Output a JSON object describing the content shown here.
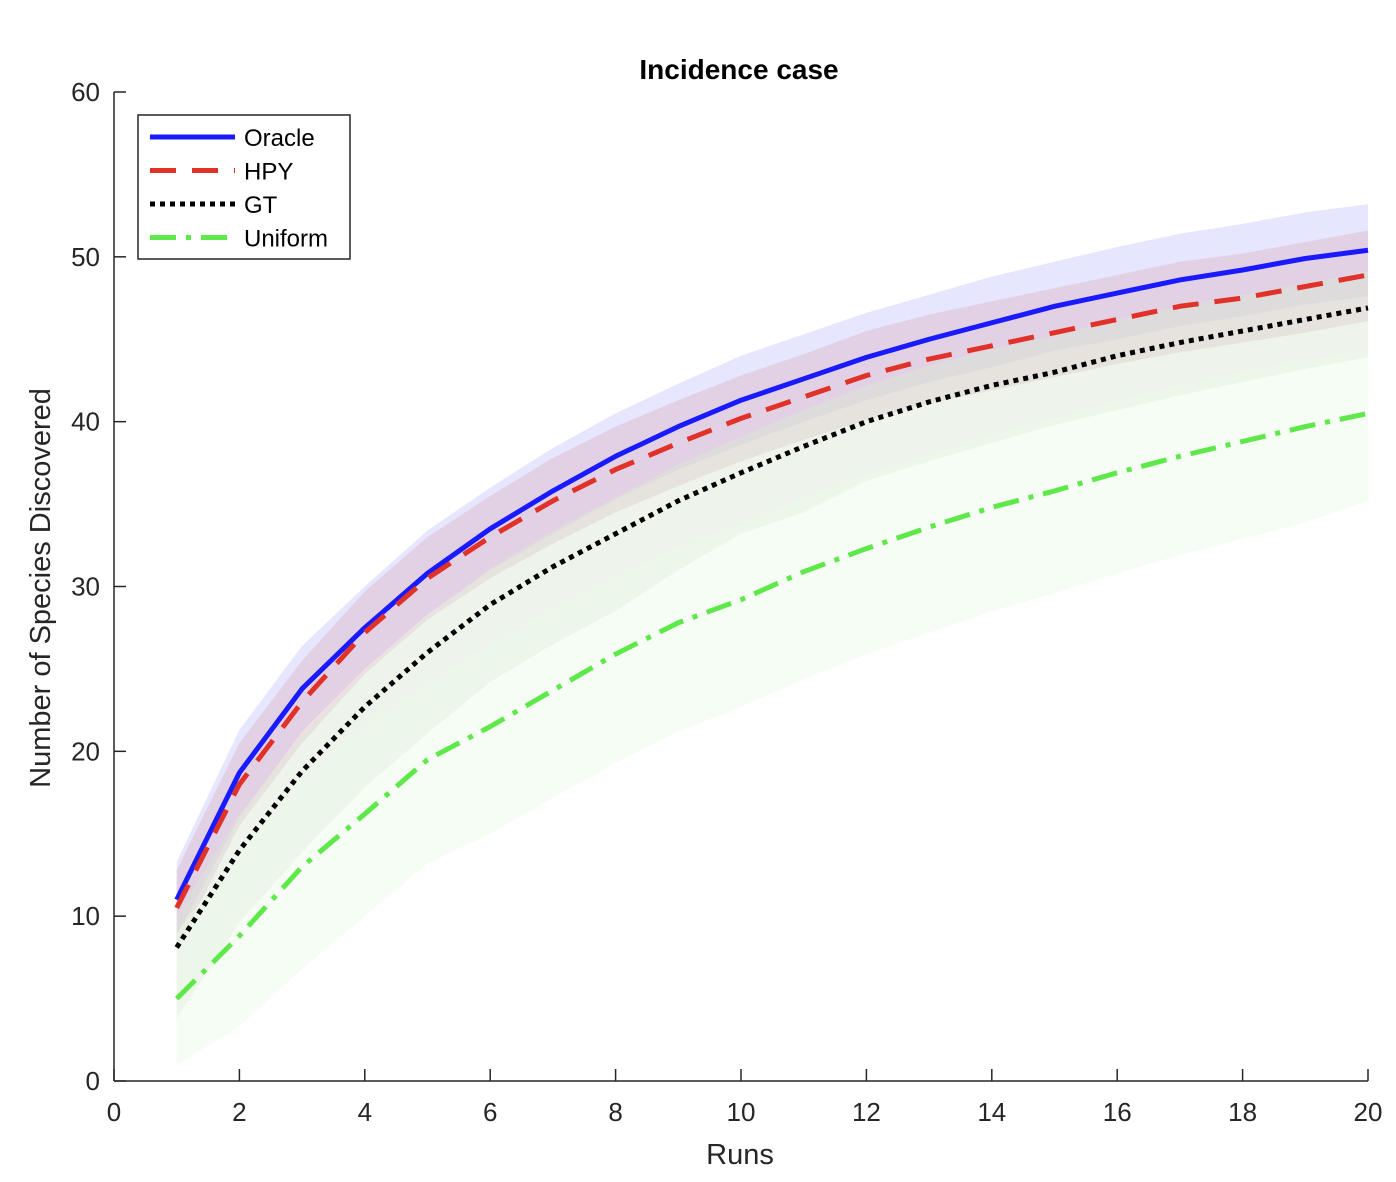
{
  "chart_data": {
    "type": "line",
    "title": "Incidence case",
    "xlabel": "Runs",
    "ylabel": "Number of Species Discovered",
    "xlim": [
      0,
      20
    ],
    "ylim": [
      0,
      60
    ],
    "xticks": [
      "0",
      "2",
      "4",
      "6",
      "8",
      "10",
      "12",
      "14",
      "16",
      "18",
      "20"
    ],
    "yticks": [
      "0",
      "10",
      "20",
      "30",
      "40",
      "50",
      "60"
    ],
    "grid": false,
    "legend_position": "top-left",
    "x": [
      1,
      2,
      3,
      4,
      5,
      6,
      7,
      8,
      9,
      10,
      11,
      12,
      13,
      14,
      15,
      16,
      17,
      18,
      19,
      20
    ],
    "series": [
      {
        "name": "Oracle",
        "color": "#1a1aff",
        "line_style": "solid",
        "band_color": "#c8c8ff",
        "values": [
          11.0,
          18.7,
          23.8,
          27.5,
          30.8,
          33.5,
          35.8,
          37.9,
          39.7,
          41.3,
          42.6,
          43.9,
          45.0,
          46.0,
          47.0,
          47.8,
          48.6,
          49.2,
          49.9,
          50.4
        ],
        "lower": [
          8.8,
          16.0,
          21.2,
          25.0,
          28.3,
          31.0,
          33.2,
          35.3,
          37.1,
          38.6,
          40.0,
          41.3,
          42.4,
          43.3,
          44.3,
          45.0,
          45.8,
          46.4,
          47.1,
          47.6
        ],
        "upper": [
          13.3,
          21.3,
          26.4,
          30.0,
          33.4,
          36.0,
          38.4,
          40.5,
          42.3,
          44.0,
          45.3,
          46.6,
          47.7,
          48.8,
          49.7,
          50.6,
          51.4,
          52.0,
          52.7,
          53.2
        ]
      },
      {
        "name": "HPY",
        "color": "#e03228",
        "line_style": "dashed",
        "band_color": "#ddb8c4",
        "values": [
          10.5,
          18.0,
          23.0,
          27.2,
          30.5,
          33.0,
          35.2,
          37.1,
          38.7,
          40.2,
          41.5,
          42.8,
          43.8,
          44.6,
          45.4,
          46.2,
          47.0,
          47.5,
          48.2,
          48.9
        ],
        "lower": [
          8.0,
          15.5,
          20.5,
          24.7,
          28.0,
          30.5,
          32.6,
          34.5,
          36.1,
          37.6,
          38.9,
          40.1,
          41.1,
          41.9,
          42.7,
          43.5,
          44.2,
          44.8,
          45.4,
          46.1
        ],
        "upper": [
          12.8,
          20.5,
          25.5,
          29.7,
          33.0,
          35.5,
          37.8,
          39.7,
          41.3,
          42.8,
          44.1,
          45.5,
          46.5,
          47.3,
          48.1,
          48.9,
          49.7,
          50.2,
          50.9,
          51.6
        ]
      },
      {
        "name": "GT",
        "color": "#000000",
        "line_style": "dotted",
        "band_color": "#d9e6d4",
        "values": [
          8.1,
          14.0,
          18.8,
          22.7,
          26.0,
          28.9,
          31.2,
          33.2,
          35.2,
          36.9,
          38.5,
          40.0,
          41.2,
          42.2,
          43.0,
          44.0,
          44.8,
          45.5,
          46.2,
          46.9
        ],
        "lower": [
          3.8,
          9.6,
          13.9,
          17.8,
          21.1,
          24.2,
          26.5,
          28.5,
          31.0,
          33.2,
          34.5,
          36.4,
          37.6,
          38.7,
          39.8,
          40.7,
          41.6,
          42.4,
          43.2,
          43.9
        ],
        "upper": [
          10.0,
          16.2,
          21.0,
          24.9,
          28.2,
          31.1,
          33.4,
          35.4,
          37.4,
          39.1,
          40.7,
          42.2,
          43.4,
          44.4,
          45.2,
          46.2,
          47.0,
          47.7,
          48.4,
          49.1
        ]
      },
      {
        "name": "Uniform",
        "color": "#5ee84a",
        "line_style": "dashdot",
        "band_color": "#ecfbe6",
        "values": [
          5.0,
          8.8,
          13.0,
          16.2,
          19.5,
          21.5,
          23.7,
          25.9,
          27.8,
          29.2,
          30.9,
          32.3,
          33.6,
          34.8,
          35.8,
          36.9,
          37.9,
          38.8,
          39.7,
          40.5
        ],
        "lower": [
          1.0,
          3.3,
          6.8,
          10.0,
          13.2,
          15.0,
          17.2,
          19.3,
          21.2,
          22.7,
          24.4,
          25.9,
          27.2,
          28.5,
          29.6,
          30.8,
          31.9,
          32.9,
          33.9,
          35.2
        ],
        "upper": [
          9.0,
          14.0,
          18.5,
          21.5,
          24.2,
          26.5,
          28.7,
          30.6,
          32.4,
          33.8,
          35.4,
          36.8,
          38.0,
          39.2,
          40.2,
          41.3,
          42.2,
          43.0,
          43.8,
          44.2
        ]
      }
    ]
  }
}
